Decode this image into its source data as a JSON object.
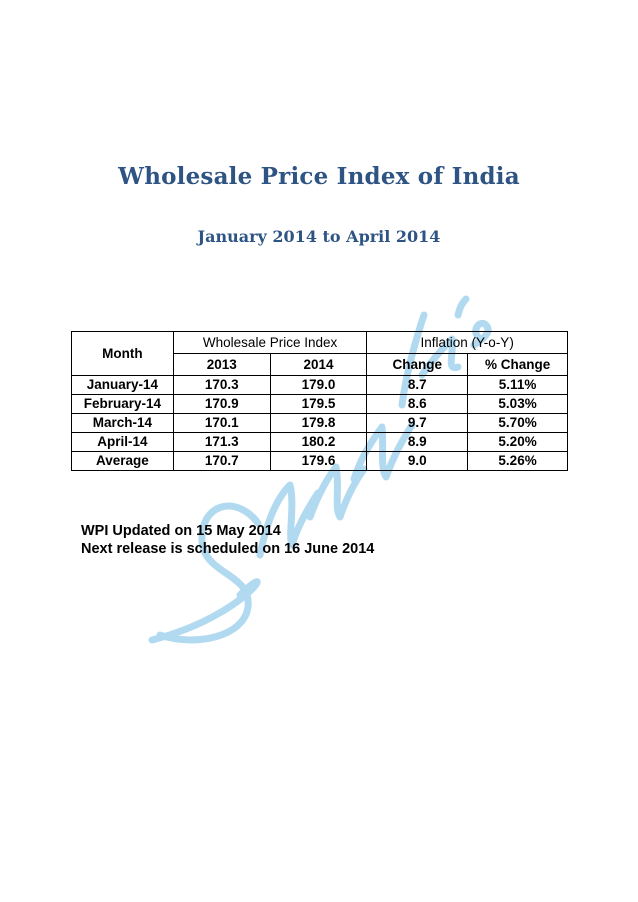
{
  "title": "Wholesale Price Index of India",
  "subtitle": "January 2014 to April 2014",
  "watermark": {
    "text": "Shyam Sundar Sa's",
    "color": "#a9d6f0"
  },
  "table": {
    "month_header": "Month",
    "group_headers": [
      "Wholesale Price Index",
      "Inflation (Y-o-Y)"
    ],
    "sub_headers": [
      "2013",
      "2014",
      "Change",
      "% Change"
    ],
    "rows": [
      {
        "month": "January-14",
        "y2013": "170.3",
        "y2014": "179.0",
        "change": "8.7",
        "pct": "5.11%"
      },
      {
        "month": "February-14",
        "y2013": "170.9",
        "y2014": "179.5",
        "change": "8.6",
        "pct": "5.03%"
      },
      {
        "month": "March-14",
        "y2013": "170.1",
        "y2014": "179.8",
        "change": "9.7",
        "pct": "5.70%"
      },
      {
        "month": "April-14",
        "y2013": "171.3",
        "y2014": "180.2",
        "change": "8.9",
        "pct": "5.20%"
      },
      {
        "month": "Average",
        "y2013": "170.7",
        "y2014": "179.6",
        "change": "9.0",
        "pct": "5.26%"
      }
    ]
  },
  "notes": {
    "updated": "WPI Updated on 15 May 2014",
    "next_release": "Next release is scheduled on 16 June 2014"
  }
}
